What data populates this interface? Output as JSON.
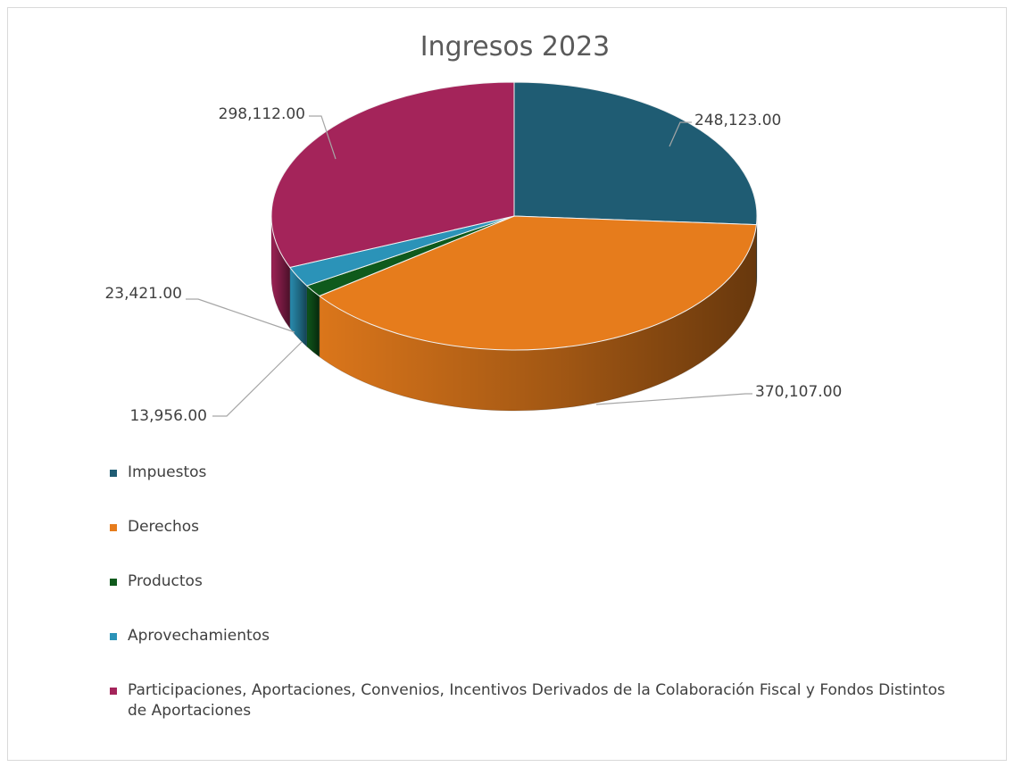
{
  "chart_data": {
    "type": "pie",
    "title": "Ingresos 2023",
    "categories": [
      "Impuestos",
      "Derechos",
      "Productos",
      "Aprovechamientos",
      "Participaciones, Aportaciones, Convenios, Incentivos Derivados de la Colaboración Fiscal y Fondos Distintos de Aportaciones"
    ],
    "values": [
      248123.0,
      370107.0,
      13956.0,
      23421.0,
      298112.0
    ],
    "data_labels": [
      "248,123.00",
      "370,107.00",
      "13,956.00",
      "23,421.00",
      "298,112.00"
    ],
    "colors": [
      "#1f5c73",
      "#e67c1c",
      "#0f5a1c",
      "#2b93b8",
      "#a4245a"
    ],
    "legend_position": "bottom",
    "style": "3d-pie"
  }
}
